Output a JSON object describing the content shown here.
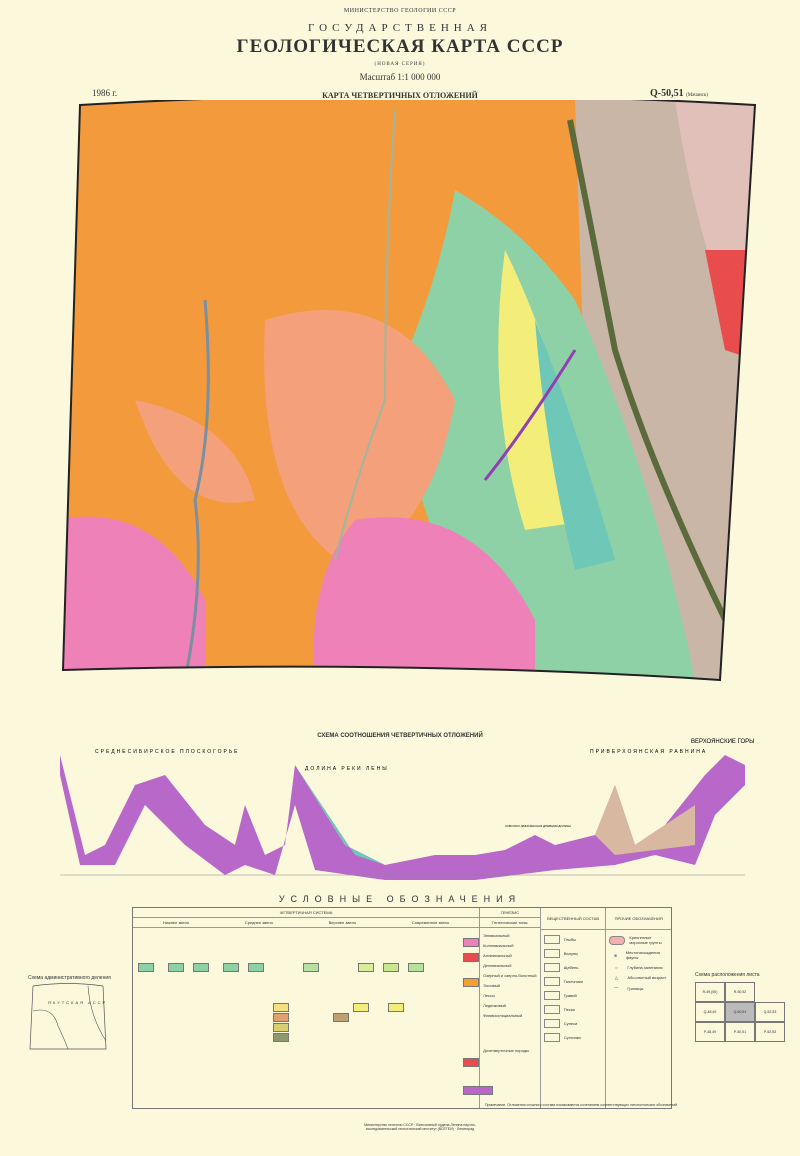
{
  "header": {
    "ministry": "МИНИСТЕРСТВО ГЕОЛОГИИ СССР",
    "state": "ГОСУДАРСТВЕННАЯ",
    "title": "ГЕОЛОГИЧЕСКАЯ КАРТА СССР",
    "series": "(НОВАЯ СЕРИЯ)",
    "scale": "Масштаб 1:1 000 000",
    "year": "1986 г.",
    "subtitle": "КАРТА ЧЕТВЕРТИЧНЫХ ОТЛОЖЕНИЙ",
    "sheet": "Q-50,51",
    "sheet_name": "(Мачанск)"
  },
  "colors": {
    "paper": "#fbf8dc",
    "orange": "#f39a3c",
    "salmon": "#f4a07a",
    "pink": "#ee82b8",
    "yellow": "#f3ee7a",
    "green": "#8fd1a6",
    "teal": "#6fc7b8",
    "purple": "#b060c0",
    "red": "#e84c4c",
    "gray": "#c9b6a6"
  },
  "profile": {
    "title": "СХЕМА СООТНОШЕНИЯ ЧЕТВЕРТИЧНЫХ ОТЛОЖЕНИЙ",
    "regions": [
      "СРЕДНЕСИБИРСКОЕ ПЛОСКОГОРЬЕ",
      "ДОЛИНА РЕКИ ЛЕНЫ",
      "ПРИВЕРХОЯНСКАЯ РАВНИНА",
      "ВЕРХОЯНСКИЕ ГОРЫ"
    ],
    "valley": "СОБОЛОХ-ЭМИСЯНСКАЯ ДРЕВНЯЯ ДОЛИНА"
  },
  "legend": {
    "title": "УСЛОВНЫЕ ОБОЗНАЧЕНИЯ",
    "system": "ЧЕТВЕРТИЧНАЯ СИСТЕМА",
    "columns": [
      "Нижнее звено",
      "Среднее звено",
      "Верхнее звено",
      "Современное звено"
    ],
    "genesis_head": "ГЕНЕЗИС",
    "genesis_sub": "Генетические типы",
    "genesis": [
      "Элювиальный",
      "Коллювиальный",
      "Аллювиальный",
      "Делювиальный",
      "Озерный и озерно-болотный",
      "Эоловый",
      "Лессы",
      "Ледниковый",
      "Флювиогляциальный"
    ],
    "composition_head": "ВЕЩЕСТВЕННЫЙ СОСТАВ",
    "composition": [
      "Глыбы",
      "Валуны",
      "Щебень",
      "Галечники",
      "Гравий",
      "Пески",
      "Супеси",
      "Суглинки"
    ],
    "other_head": "ПРОЧИЕ ОБОЗНАЧЕНИЯ",
    "other": [
      "Криогенные морозные грунты",
      "Местонахождения фауны",
      "Глубина залегания",
      "Абсолютный возраст",
      "Границы"
    ],
    "last": "Дочетвертичные породы"
  },
  "insets": {
    "admin_title": "Схема административного деления",
    "admin_region": "ЯКУТСКАЯ АССР",
    "layout_title": "Схема расположения листа",
    "sheets": [
      "R-49,(50)",
      "R-50,52",
      "Q-48,49",
      "Q-50,51",
      "Q-52,53",
      "P-48,49",
      "P-50,51",
      "P-52,53"
    ]
  },
  "note": "Примечание. Отложения сложного состава показываются сочетанием соответствующих литологических обозначений",
  "publisher": "Министерство геологии СССР · Всесоюзный ордена Ленина научно-исследовательский геологический институт (ВСЕГЕИ) · Ленинград"
}
